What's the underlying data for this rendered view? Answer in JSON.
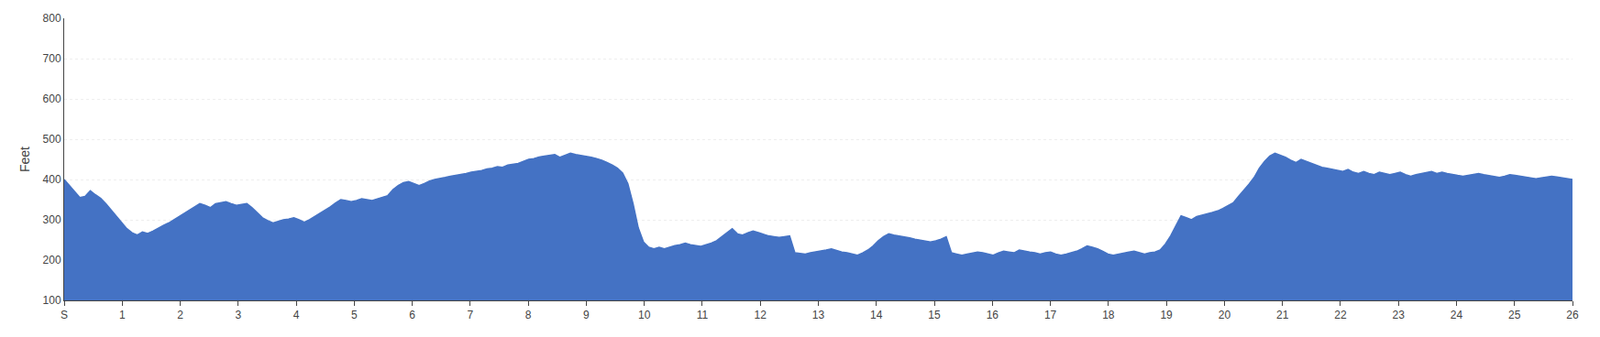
{
  "chart_data": {
    "type": "area",
    "ylabel": "Feet",
    "color": "#4472c4",
    "grid": true,
    "xlim": [
      0,
      26
    ],
    "xticks": [
      {
        "value": 0,
        "label": "S"
      },
      1,
      2,
      3,
      4,
      5,
      6,
      7,
      8,
      9,
      10,
      11,
      12,
      13,
      14,
      15,
      16,
      17,
      18,
      19,
      20,
      21,
      22,
      23,
      24,
      25,
      26
    ],
    "ylim": [
      100,
      800
    ],
    "yticks": [
      100,
      200,
      300,
      400,
      500,
      600,
      700,
      800
    ],
    "values": [
      400,
      385,
      370,
      355,
      358,
      372,
      362,
      353,
      340,
      325,
      310,
      295,
      278,
      268,
      262,
      270,
      266,
      272,
      280,
      286,
      292,
      300,
      308,
      318,
      326,
      334,
      340,
      336,
      330,
      340,
      342,
      345,
      340,
      336,
      338,
      340,
      330,
      318,
      305,
      298,
      292,
      296,
      300,
      302,
      305,
      300,
      294,
      300,
      308,
      316,
      322,
      332,
      342,
      350,
      348,
      345,
      348,
      352,
      350,
      348,
      352,
      356,
      360,
      375,
      385,
      392,
      395,
      390,
      385,
      390,
      396,
      400,
      402,
      405,
      408,
      410,
      412,
      415,
      418,
      420,
      422,
      426,
      428,
      432,
      430,
      436,
      438,
      440,
      445,
      450,
      452,
      456,
      458,
      460,
      462,
      455,
      460,
      465,
      462,
      460,
      458,
      455,
      452,
      448,
      442,
      436,
      428,
      416,
      390,
      340,
      280,
      245,
      232,
      228,
      232,
      228,
      232,
      236,
      238,
      242,
      238,
      236,
      234,
      238,
      242,
      248,
      258,
      268,
      278,
      265,
      262,
      268,
      272,
      268,
      264,
      260,
      258,
      256,
      258,
      260,
      218,
      216,
      215,
      218,
      220,
      222,
      225,
      228,
      224,
      220,
      218,
      215,
      212,
      218,
      225,
      235,
      248,
      258,
      265,
      262,
      260,
      258,
      255,
      252,
      250,
      248,
      245,
      248,
      252,
      258,
      218,
      215,
      212,
      215,
      218,
      220,
      218,
      215,
      212,
      218,
      222,
      220,
      218,
      225,
      222,
      220,
      218,
      215,
      218,
      220,
      215,
      212,
      215,
      218,
      222,
      228,
      235,
      232,
      228,
      222,
      215,
      212,
      215,
      218,
      220,
      222,
      218,
      215,
      218,
      220,
      225,
      240,
      260,
      285,
      310,
      305,
      300,
      308,
      312,
      315,
      318,
      322,
      328,
      335,
      342,
      358,
      372,
      388,
      405,
      428,
      445,
      458,
      465,
      460,
      455,
      448,
      442,
      450,
      445,
      440,
      435,
      430,
      428,
      425,
      422,
      420,
      425,
      418,
      415,
      420,
      415,
      412,
      418,
      415,
      412,
      415,
      418,
      412,
      408,
      412,
      415,
      418,
      420,
      415,
      418,
      415,
      412,
      410,
      408,
      410,
      412,
      415,
      412,
      410,
      408,
      405,
      408,
      412,
      410,
      408,
      406,
      404,
      402,
      404,
      406,
      408,
      406,
      404,
      402,
      400
    ]
  }
}
